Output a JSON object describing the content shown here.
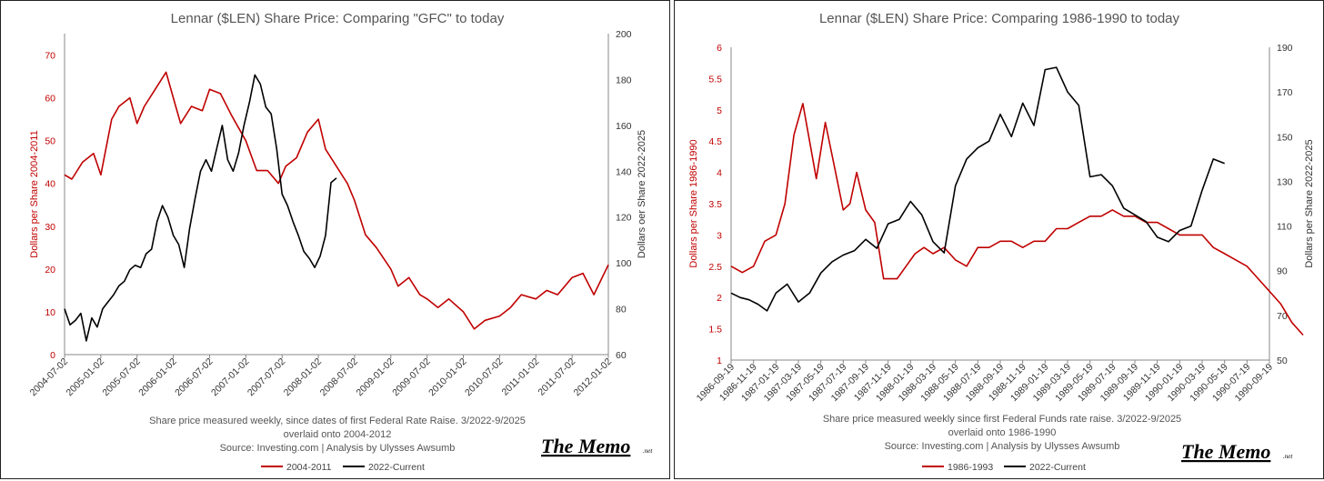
{
  "chart_data": [
    {
      "type": "line",
      "title": "Lennar ($LEN) Share Price: Comparing \"GFC\" to today",
      "y_left_label": "Dollars per Share 2004-2011",
      "y_right_label": "Dollars oer Share 2022-2025",
      "y_left_ticks": [
        "0",
        "10",
        "20",
        "30",
        "40",
        "50",
        "60",
        "70"
      ],
      "y_right_ticks": [
        "60",
        "80",
        "100",
        "120",
        "140",
        "160",
        "180",
        "200"
      ],
      "ylim_left": [
        0,
        75
      ],
      "ylim_right": [
        60,
        200
      ],
      "x_ticks": [
        "2004-07-02",
        "2005-01-02",
        "2005-07-02",
        "2006-01-02",
        "2006-07-02",
        "2007-01-02",
        "2007-07-02",
        "2008-01-02",
        "2008-07-02",
        "2009-01-02",
        "2009-07-02",
        "2010-01-02",
        "2010-07-02",
        "2011-01-02",
        "2011-07-02",
        "2012-01-02"
      ],
      "caption_lines": [
        "Share price measured weekly, since dates of first Federal Rate Raise. 3/2022-9/2025",
        "overlaid onto 2004-2012",
        "Source: Investing.com  |  Analysis by Ulysses Awsumb"
      ],
      "series": [
        {
          "name": "2004-2011",
          "axis": "left",
          "color": "#c00000",
          "x": [
            0,
            0.2,
            0.5,
            0.8,
            1.0,
            1.3,
            1.5,
            1.8,
            2.0,
            2.2,
            2.5,
            2.8,
            3.0,
            3.2,
            3.5,
            3.8,
            4.0,
            4.3,
            4.6,
            5.0,
            5.3,
            5.6,
            5.9,
            6.1,
            6.4,
            6.7,
            7.0,
            7.2,
            7.5,
            7.8,
            8.0,
            8.3,
            8.6,
            9.0,
            9.2,
            9.5,
            9.8,
            10.0,
            10.3,
            10.6,
            11.0,
            11.3,
            11.6,
            12.0,
            12.3,
            12.6,
            13.0,
            13.3,
            13.6,
            14.0,
            14.3,
            14.6,
            15.0
          ],
          "values": [
            42,
            41,
            45,
            47,
            42,
            55,
            58,
            60,
            54,
            58,
            62,
            66,
            60,
            54,
            58,
            57,
            62,
            61,
            56,
            50,
            43,
            43,
            40,
            44,
            46,
            52,
            55,
            48,
            44,
            40,
            36,
            28,
            25,
            20,
            16,
            18,
            14,
            13,
            11,
            13,
            10,
            6,
            8,
            9,
            11,
            14,
            13,
            15,
            14,
            18,
            19,
            14,
            21
          ]
        },
        {
          "name": "2022-Current",
          "axis": "right",
          "color": "#000000",
          "x": [
            0,
            0.15,
            0.3,
            0.45,
            0.6,
            0.75,
            0.9,
            1.05,
            1.2,
            1.35,
            1.5,
            1.65,
            1.8,
            1.95,
            2.1,
            2.25,
            2.4,
            2.55,
            2.7,
            2.85,
            3.0,
            3.15,
            3.3,
            3.45,
            3.6,
            3.75,
            3.9,
            4.05,
            4.2,
            4.35,
            4.5,
            4.65,
            4.8,
            4.95,
            5.1,
            5.25,
            5.4,
            5.55,
            5.7,
            5.85,
            6.0,
            6.15,
            6.3,
            6.45,
            6.6,
            6.75,
            6.9,
            7.05,
            7.2,
            7.35,
            7.5
          ],
          "values": [
            80,
            73,
            75,
            78,
            66,
            76,
            72,
            80,
            83,
            86,
            90,
            92,
            97,
            99,
            98,
            104,
            106,
            118,
            125,
            120,
            112,
            108,
            98,
            115,
            128,
            140,
            145,
            140,
            150,
            160,
            145,
            140,
            148,
            160,
            170,
            182,
            178,
            168,
            165,
            150,
            130,
            125,
            118,
            112,
            105,
            102,
            98,
            103,
            112,
            135,
            137
          ]
        }
      ],
      "legend": [
        "2004-2011",
        "2022-Current"
      ],
      "brand": "The Memo",
      "brand_suffix": ".net"
    },
    {
      "type": "line",
      "title": "Lennar ($LEN) Share Price: Comparing 1986-1990 to today",
      "y_left_label": "Dollars per Share 1986-1990",
      "y_right_label": "Dollars per Share 2022-2025",
      "y_left_ticks": [
        "1",
        "1.5",
        "2",
        "2.5",
        "3",
        "3.5",
        "4",
        "4.5",
        "5",
        "5.5",
        "6"
      ],
      "y_right_ticks": [
        "50",
        "70",
        "90",
        "110",
        "130",
        "150",
        "170",
        "190"
      ],
      "ylim_left": [
        1,
        6
      ],
      "ylim_right": [
        50,
        190
      ],
      "x_ticks": [
        "1986-09-19",
        "1986-11-19",
        "1987-01-19",
        "1987-03-19",
        "1987-05-19",
        "1987-07-19",
        "1987-09-19",
        "1987-11-19",
        "1988-01-19",
        "1988-03-19",
        "1988-05-19",
        "1988-07-19",
        "1988-09-19",
        "1988-11-19",
        "1989-01-19",
        "1989-03-19",
        "1989-05-19",
        "1989-07-19",
        "1989-09-19",
        "1989-11-19",
        "1990-01-19",
        "1990-03-19",
        "1990-05-19",
        "1990-07-19",
        "1990-09-19"
      ],
      "caption_lines": [
        "Share price measured weekly since first Federal Funds rate raise. 3/2022-9/2025",
        "overlaid onto 1986-1990",
        "Source: Investing.com  |  Analysis by Ulysses Awsumb"
      ],
      "series": [
        {
          "name": "1986-1993",
          "axis": "left",
          "color": "#c00000",
          "x": [
            0,
            0.5,
            1.0,
            1.5,
            2.0,
            2.4,
            2.8,
            3.2,
            3.5,
            3.8,
            4.2,
            4.6,
            5.0,
            5.3,
            5.6,
            6.0,
            6.4,
            6.8,
            7.0,
            7.4,
            7.8,
            8.2,
            8.6,
            9.0,
            9.5,
            10.0,
            10.5,
            11.0,
            11.5,
            12.0,
            12.5,
            13.0,
            13.5,
            14.0,
            14.5,
            15.0,
            15.5,
            16.0,
            16.5,
            17.0,
            17.5,
            18.0,
            18.5,
            19.0,
            19.5,
            20.0,
            20.5,
            21.0,
            21.5,
            22.0,
            22.5,
            23.0,
            23.5,
            24.0,
            24.5,
            25.0,
            25.5
          ],
          "values": [
            2.5,
            2.4,
            2.5,
            2.9,
            3.0,
            3.5,
            4.6,
            5.1,
            4.5,
            3.9,
            4.8,
            4.1,
            3.4,
            3.5,
            4.0,
            3.4,
            3.2,
            2.3,
            2.3,
            2.3,
            2.5,
            2.7,
            2.8,
            2.7,
            2.8,
            2.6,
            2.5,
            2.8,
            2.8,
            2.9,
            2.9,
            2.8,
            2.9,
            2.9,
            3.1,
            3.1,
            3.2,
            3.3,
            3.3,
            3.4,
            3.3,
            3.3,
            3.2,
            3.2,
            3.1,
            3.0,
            3.0,
            3.0,
            2.8,
            2.7,
            2.6,
            2.5,
            2.3,
            2.1,
            1.9,
            1.6,
            1.4
          ]
        },
        {
          "name": "2022-Current",
          "axis": "right",
          "color": "#000000",
          "x": [
            0,
            0.4,
            0.8,
            1.2,
            1.6,
            2.0,
            2.5,
            3.0,
            3.5,
            4.0,
            4.5,
            5.0,
            5.5,
            6.0,
            6.5,
            7.0,
            7.5,
            8.0,
            8.5,
            9.0,
            9.5,
            10.0,
            10.5,
            11.0,
            11.5,
            12.0,
            12.5,
            13.0,
            13.5,
            14.0,
            14.5,
            15.0,
            15.5,
            16.0,
            16.5,
            17.0,
            17.5,
            18.0,
            18.5,
            19.0,
            19.5,
            20.0,
            20.5,
            21.0,
            21.5,
            22.0
          ],
          "values": [
            80,
            78,
            77,
            75,
            72,
            80,
            84,
            76,
            80,
            89,
            94,
            97,
            99,
            104,
            100,
            111,
            113,
            121,
            115,
            103,
            98,
            128,
            140,
            145,
            148,
            160,
            150,
            165,
            155,
            180,
            181,
            170,
            164,
            132,
            133,
            128,
            118,
            115,
            112,
            105,
            103,
            108,
            110,
            126,
            140,
            138
          ]
        }
      ],
      "legend": [
        "1986-1993",
        "2022-Current"
      ],
      "brand": "The Memo",
      "brand_suffix": ".net"
    }
  ]
}
